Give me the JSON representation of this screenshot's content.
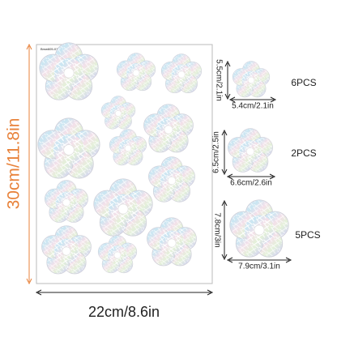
{
  "sheet": {
    "code": "Bmw605-01",
    "height_label": "30cm/11.8in",
    "width_label": "22cm/8.6in"
  },
  "sizes": [
    {
      "height": "5.5cm/2.1in",
      "width": "5.4cm/2.1in",
      "count": "6PCS"
    },
    {
      "height": "6.5cm/2.5in",
      "width": "6.6cm/2.6in",
      "count": "2PCS"
    },
    {
      "height": "7.8cm/3in",
      "width": "7.9cm/3.1in",
      "count": "5PCS"
    }
  ]
}
